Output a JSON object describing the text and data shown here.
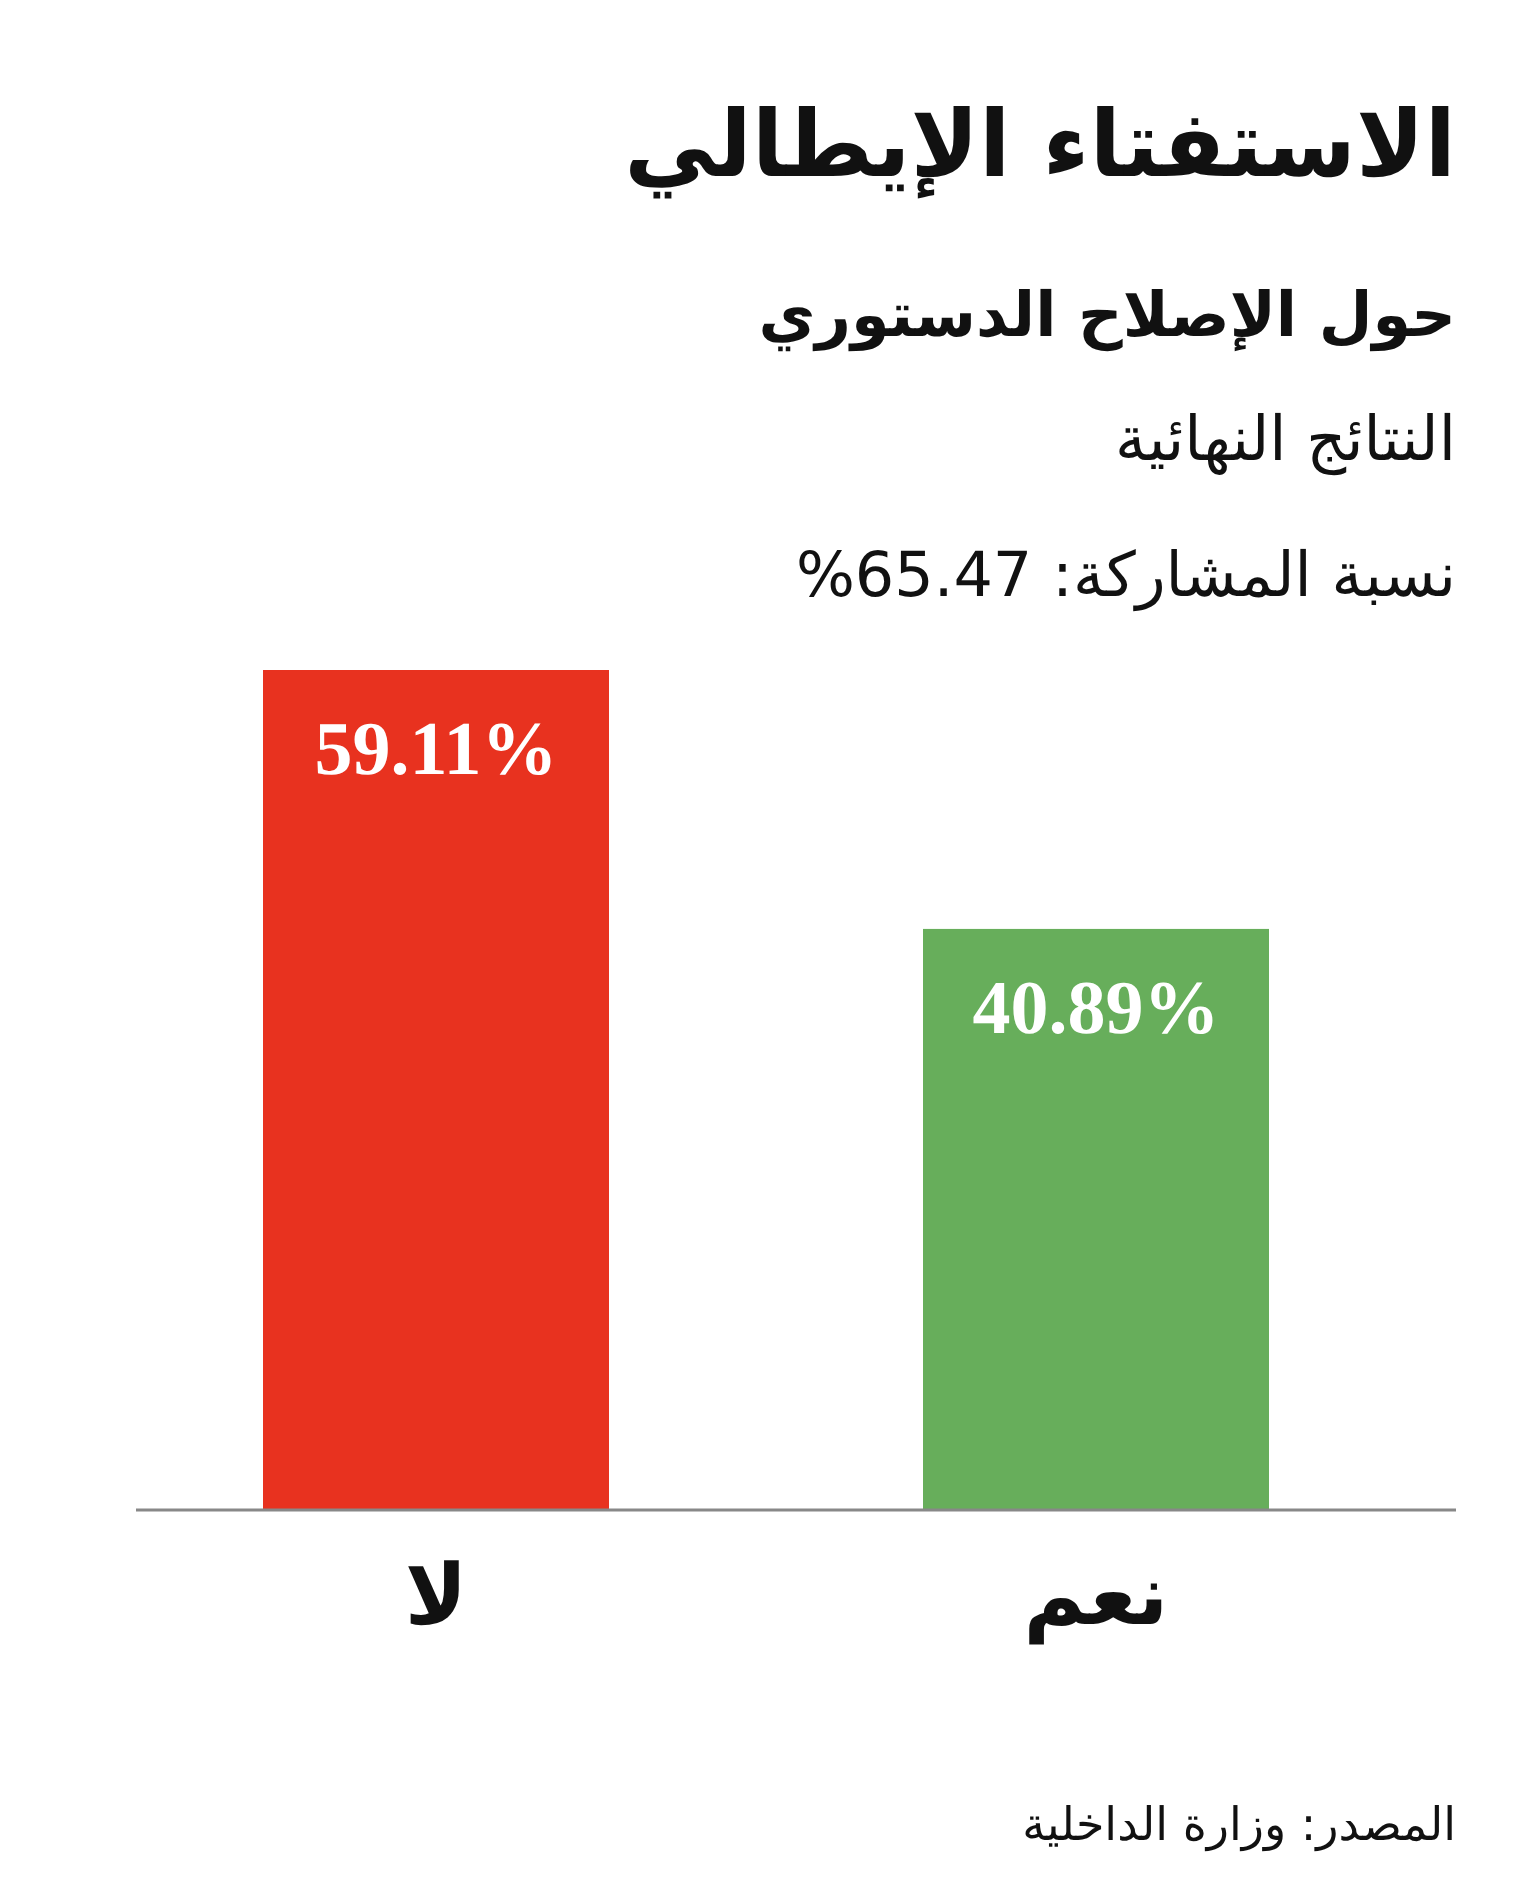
{
  "chart_data": {
    "type": "bar",
    "title": "الاستفتاء الإيطالي",
    "subtitle": "حول الإصلاح الدستوري",
    "annotations": [
      "النتائج النهائية",
      "نسبة المشاركة: 65.47%",
      "المصدر: وزارة الداخلية"
    ],
    "categories": [
      "لا",
      "نعم"
    ],
    "values": [
      59.11,
      40.89
    ],
    "colors": [
      "#e8321f",
      "#67ae5b"
    ],
    "value_labels": [
      "59.11%",
      "40.89%"
    ]
  }
}
